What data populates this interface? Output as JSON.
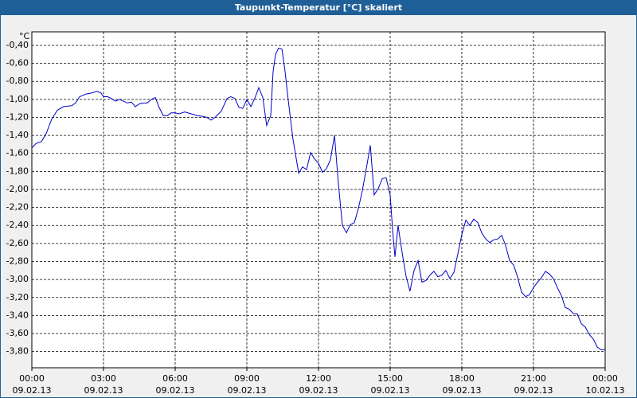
{
  "chart_data": {
    "type": "line",
    "title": "Taupunkt-Temperatur [°C] skaliert",
    "y_unit": "°C",
    "xlim": [
      0,
      24
    ],
    "ylim": [
      -3.98,
      -0.25
    ],
    "grid": true,
    "xticks": [
      {
        "value": 0,
        "label": "00:00"
      },
      {
        "value": 3,
        "label": "03:00"
      },
      {
        "value": 6,
        "label": "06:00"
      },
      {
        "value": 9,
        "label": "09:00"
      },
      {
        "value": 12,
        "label": "12:00"
      },
      {
        "value": 15,
        "label": "15:00"
      },
      {
        "value": 18,
        "label": "18:00"
      },
      {
        "value": 21,
        "label": "21:00"
      },
      {
        "value": 24,
        "label": "00:00"
      }
    ],
    "xtick_dates": [
      "09.02.13",
      "09.02.13",
      "09.02.13",
      "09.02.13",
      "09.02.13",
      "09.02.13",
      "09.02.13",
      "09.02.13",
      "10.02.13"
    ],
    "yticks": [
      {
        "value": -0.4,
        "label": "-0,40"
      },
      {
        "value": -0.6,
        "label": "-0,60"
      },
      {
        "value": -0.8,
        "label": "-0,80"
      },
      {
        "value": -1.0,
        "label": "-1,00"
      },
      {
        "value": -1.2,
        "label": "-1,20"
      },
      {
        "value": -1.4,
        "label": "-1,40"
      },
      {
        "value": -1.6,
        "label": "-1,60"
      },
      {
        "value": -1.8,
        "label": "-1,80"
      },
      {
        "value": -2.0,
        "label": "-2,00"
      },
      {
        "value": -2.2,
        "label": "-2,20"
      },
      {
        "value": -2.4,
        "label": "-2,40"
      },
      {
        "value": -2.6,
        "label": "-2,60"
      },
      {
        "value": -2.8,
        "label": "-2,80"
      },
      {
        "value": -3.0,
        "label": "-3,00"
      },
      {
        "value": -3.2,
        "label": "-3,20"
      },
      {
        "value": -3.4,
        "label": "-3,40"
      },
      {
        "value": -3.6,
        "label": "-3,60"
      },
      {
        "value": -3.8,
        "label": "-3,80"
      }
    ],
    "series": [
      {
        "color": "#0000c8",
        "x": [
          0,
          0.17,
          0.4,
          0.6,
          0.83,
          1.07,
          1.33,
          1.67,
          1.83,
          2.0,
          2.27,
          2.5,
          2.73,
          2.9,
          3.0,
          3.17,
          3.33,
          3.5,
          3.67,
          3.83,
          4.0,
          4.17,
          4.33,
          4.5,
          4.67,
          4.83,
          5.0,
          5.17,
          5.33,
          5.5,
          5.67,
          5.83,
          6.0,
          6.17,
          6.4,
          6.67,
          6.93,
          7.17,
          7.33,
          7.5,
          7.67,
          7.93,
          8.17,
          8.33,
          8.5,
          8.67,
          8.83,
          9.0,
          9.17,
          9.33,
          9.5,
          9.67,
          9.83,
          10.0,
          10.1,
          10.2,
          10.33,
          10.47,
          10.6,
          10.73,
          10.93,
          11.17,
          11.33,
          11.5,
          11.67,
          11.83,
          12.0,
          12.17,
          12.33,
          12.5,
          12.67,
          12.83,
          13.0,
          13.17,
          13.33,
          13.5,
          13.67,
          13.83,
          14.0,
          14.17,
          14.33,
          14.5,
          14.67,
          14.83,
          15.0,
          15.1,
          15.2,
          15.33,
          15.5,
          15.67,
          15.83,
          16.0,
          16.17,
          16.33,
          16.5,
          16.67,
          16.83,
          17.0,
          17.17,
          17.33,
          17.5,
          17.67,
          17.83,
          18.0,
          18.17,
          18.33,
          18.5,
          18.67,
          18.83,
          19.0,
          19.17,
          19.33,
          19.5,
          19.67,
          19.83,
          20.0,
          20.17,
          20.33,
          20.5,
          20.67,
          20.83,
          21.0,
          21.17,
          21.33,
          21.5,
          21.67,
          21.83,
          22.0,
          22.17,
          22.33,
          22.5,
          22.67,
          22.83,
          23.0,
          23.17,
          23.33,
          23.5,
          23.67,
          23.83,
          24.0
        ],
        "values": [
          -1.54,
          -1.49,
          -1.47,
          -1.38,
          -1.22,
          -1.12,
          -1.08,
          -1.07,
          -1.04,
          -0.97,
          -0.94,
          -0.93,
          -0.91,
          -0.93,
          -0.97,
          -0.97,
          -0.99,
          -1.02,
          -1.0,
          -1.02,
          -1.04,
          -1.03,
          -1.08,
          -1.05,
          -1.04,
          -1.04,
          -1.0,
          -0.98,
          -1.09,
          -1.18,
          -1.18,
          -1.15,
          -1.15,
          -1.16,
          -1.14,
          -1.16,
          -1.18,
          -1.19,
          -1.2,
          -1.23,
          -1.2,
          -1.13,
          -0.99,
          -0.97,
          -0.99,
          -1.09,
          -1.1,
          -1.0,
          -1.08,
          -0.99,
          -0.87,
          -0.98,
          -1.29,
          -1.18,
          -0.69,
          -0.5,
          -0.43,
          -0.44,
          -0.69,
          -1.0,
          -1.44,
          -1.82,
          -1.75,
          -1.78,
          -1.59,
          -1.66,
          -1.71,
          -1.81,
          -1.77,
          -1.67,
          -1.4,
          -1.93,
          -2.4,
          -2.48,
          -2.39,
          -2.37,
          -2.21,
          -2.02,
          -1.77,
          -1.51,
          -2.06,
          -1.99,
          -1.88,
          -1.87,
          -2.06,
          -2.44,
          -2.75,
          -2.4,
          -2.7,
          -2.97,
          -3.13,
          -2.9,
          -2.79,
          -3.03,
          -3.01,
          -2.95,
          -2.91,
          -2.97,
          -2.95,
          -2.9,
          -2.99,
          -2.92,
          -2.72,
          -2.5,
          -2.34,
          -2.4,
          -2.33,
          -2.37,
          -2.48,
          -2.55,
          -2.59,
          -2.56,
          -2.55,
          -2.51,
          -2.62,
          -2.79,
          -2.84,
          -2.97,
          -3.14,
          -3.19,
          -3.17,
          -3.09,
          -3.03,
          -2.98,
          -2.91,
          -2.94,
          -2.99,
          -3.09,
          -3.18,
          -3.31,
          -3.33,
          -3.38,
          -3.38,
          -3.49,
          -3.53,
          -3.61,
          -3.66,
          -3.75,
          -3.78,
          -3.78
        ]
      }
    ]
  }
}
